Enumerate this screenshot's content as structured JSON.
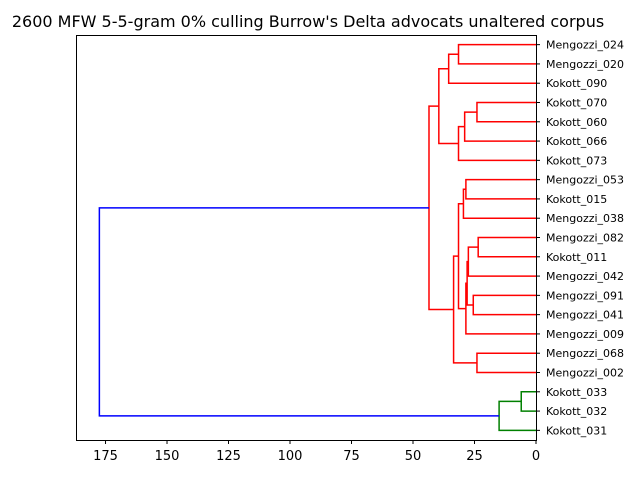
{
  "chart_data": {
    "type": "dendrogram",
    "title": "2600 MFW 5-5-gram 0% culling Burrow's Delta advocats unaltered corpus",
    "xlabel": "",
    "ylabel": "",
    "orientation": "left",
    "xlim": [
      187,
      0
    ],
    "x_ticks": [
      175,
      150,
      125,
      100,
      75,
      50,
      25,
      0
    ],
    "leaves": [
      "Mengozzi_024",
      "Mengozzi_020",
      "Kokott_090",
      "Kokott_070",
      "Kokott_060",
      "Kokott_066",
      "Kokott_073",
      "Mengozzi_053",
      "Kokott_015",
      "Mengozzi_038",
      "Mengozzi_082",
      "Kokott_011",
      "Mengozzi_042",
      "Mengozzi_091",
      "Mengozzi_041",
      "Mengozzi_009",
      "Mengozzi_068",
      "Mengozzi_002",
      "Kokott_033",
      "Kokott_032",
      "Kokott_031"
    ],
    "colors": {
      "red_cluster": "#ff0000",
      "green_cluster": "#008000",
      "root": "#0000ff"
    },
    "merges": [
      {
        "a": 0,
        "b": 1,
        "height": 31.5,
        "color": "red"
      },
      {
        "a": 21,
        "b": 2,
        "height": 35.5,
        "color": "red"
      },
      {
        "a": 3,
        "b": 4,
        "height": 24,
        "color": "red"
      },
      {
        "a": 23,
        "b": 5,
        "height": 29,
        "color": "red"
      },
      {
        "a": 24,
        "b": 6,
        "height": 31.5,
        "color": "red"
      },
      {
        "a": 22,
        "b": 25,
        "height": 39.5,
        "color": "red"
      },
      {
        "a": 7,
        "b": 8,
        "height": 28.5,
        "color": "red"
      },
      {
        "a": 27,
        "b": 9,
        "height": 29.5,
        "color": "red"
      },
      {
        "a": 10,
        "b": 11,
        "height": 23.5,
        "color": "red"
      },
      {
        "a": 29,
        "b": 12,
        "height": 27.5,
        "color": "red"
      },
      {
        "a": 13,
        "b": 14,
        "height": 25.5,
        "color": "red"
      },
      {
        "a": 30,
        "b": 31,
        "height": 28,
        "color": "red"
      },
      {
        "a": 32,
        "b": 15,
        "height": 28.5,
        "color": "red"
      },
      {
        "a": 28,
        "b": 33,
        "height": 31.5,
        "color": "red"
      },
      {
        "a": 16,
        "b": 17,
        "height": 24,
        "color": "red"
      },
      {
        "a": 34,
        "b": 35,
        "height": 33.5,
        "color": "red"
      },
      {
        "a": 26,
        "b": 36,
        "height": 43.5,
        "color": "red"
      },
      {
        "a": 18,
        "b": 19,
        "height": 6,
        "color": "green"
      },
      {
        "a": 38,
        "b": 20,
        "height": 15,
        "color": "green"
      },
      {
        "a": 37,
        "b": 39,
        "height": 177.5,
        "color": "blue"
      }
    ]
  }
}
